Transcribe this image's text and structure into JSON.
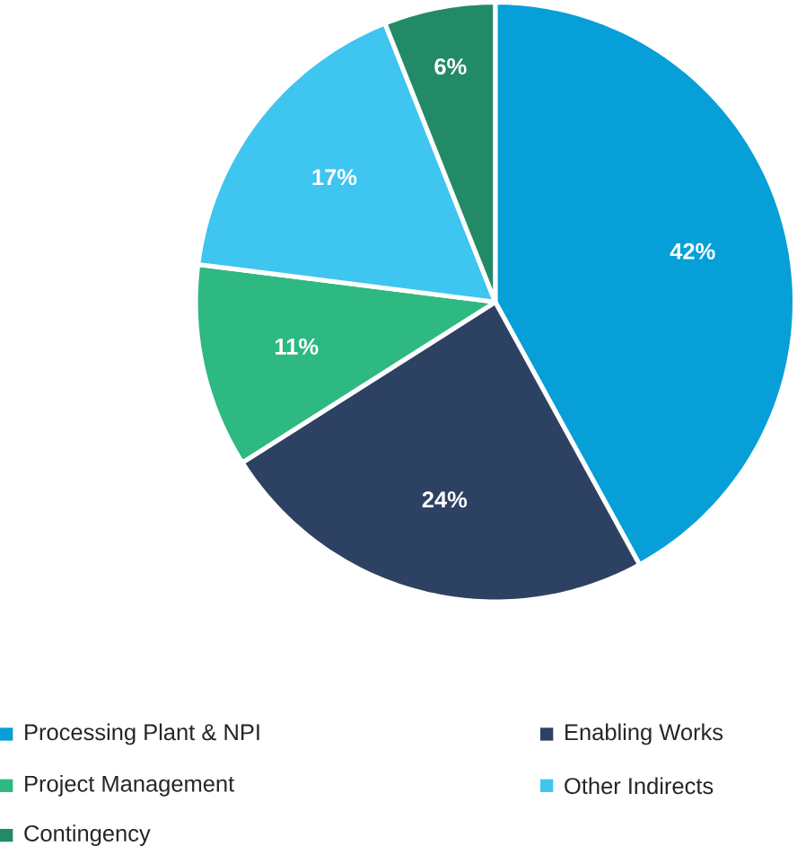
{
  "chart_data": {
    "type": "pie",
    "categories": [
      "Processing Plant & NPI",
      "Enabling Works",
      "Project Management",
      "Other Indirects",
      "Contingency"
    ],
    "values": [
      42,
      24,
      11,
      17,
      6
    ],
    "value_labels": [
      "42%",
      "24%",
      "11%",
      "17%",
      "6%"
    ],
    "colors": [
      "#069fd8",
      "#2d4263",
      "#2eb882",
      "#3ec5f0",
      "#238a68"
    ],
    "legend": "bottom"
  }
}
